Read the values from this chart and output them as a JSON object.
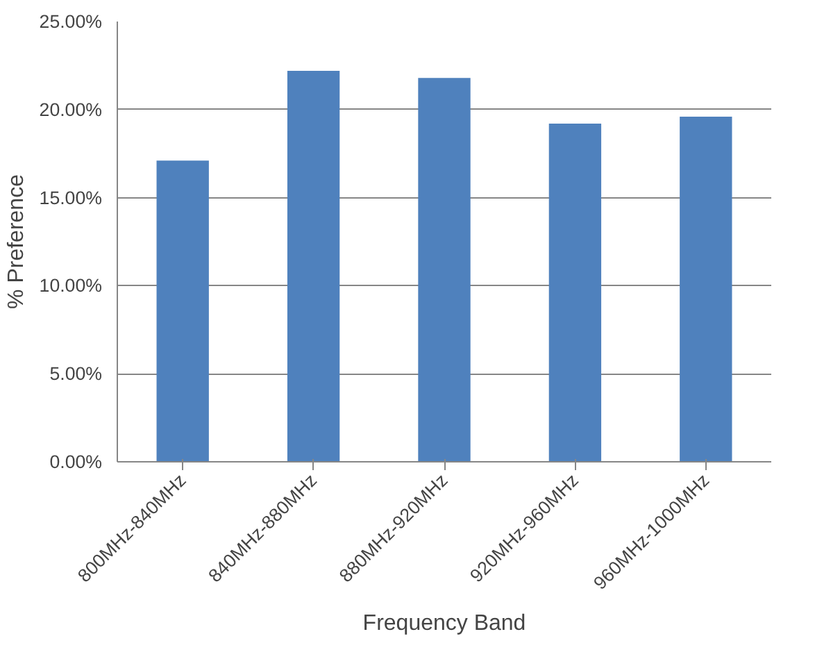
{
  "chart_data": {
    "type": "bar",
    "categories": [
      "800MHz-840MHz",
      "840MHz-880MHz",
      "880MHz-920MHz",
      "920MHz-960MHz",
      "960MHz-1000MHz"
    ],
    "values": [
      17.1,
      22.2,
      21.8,
      19.2,
      19.6
    ],
    "color": "#4f81bd",
    "xlabel": "Frequency Band",
    "ylabel": "% Preference",
    "ylim": [
      0,
      25
    ],
    "yticks": [
      {
        "value": 0,
        "label": "0.00%"
      },
      {
        "value": 5,
        "label": "5.00%"
      },
      {
        "value": 10,
        "label": "10.00%"
      },
      {
        "value": 15,
        "label": "15.00%"
      },
      {
        "value": 20,
        "label": "20.00%"
      },
      {
        "value": 25,
        "label": "25.00%"
      }
    ],
    "grid": "y"
  }
}
